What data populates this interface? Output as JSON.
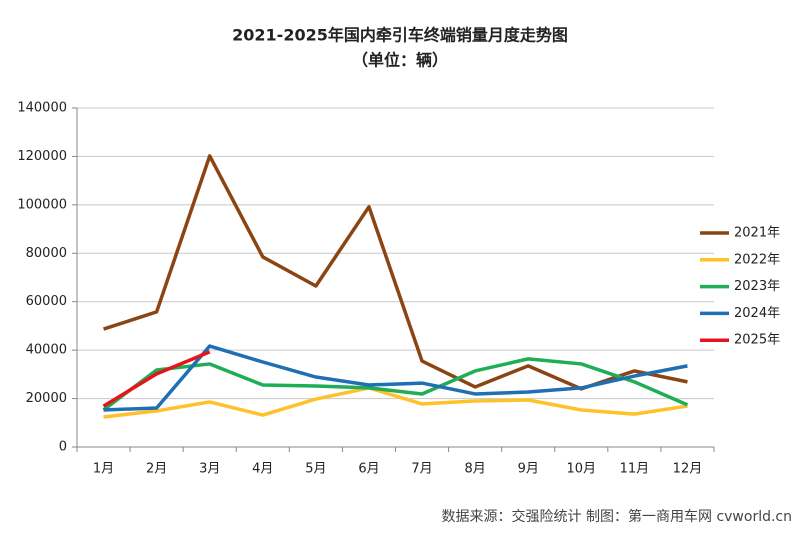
{
  "chart_data": {
    "type": "line",
    "title": "2021-2025年国内牵引车终端销量月度走势图",
    "subtitle": "（单位：辆）",
    "source": "数据来源：交强险统计   制图：第一商用车网 cvworld.cn",
    "categories": [
      "1月",
      "2月",
      "3月",
      "4月",
      "5月",
      "6月",
      "7月",
      "8月",
      "9月",
      "10月",
      "11月",
      "12月"
    ],
    "series": [
      {
        "name": "2021年",
        "color": "#8b4513",
        "values": [
          48700,
          55800,
          120200,
          78500,
          66500,
          99200,
          35500,
          24800,
          33500,
          24000,
          31400,
          26900
        ]
      },
      {
        "name": "2022年",
        "color": "#ffc12a",
        "values": [
          12400,
          14900,
          18600,
          13200,
          19800,
          24400,
          17800,
          19000,
          19400,
          15300,
          13600,
          16900
        ]
      },
      {
        "name": "2023年",
        "color": "#1fad55",
        "values": [
          15300,
          31800,
          34300,
          25600,
          25200,
          24400,
          21900,
          31400,
          36400,
          34300,
          26900,
          17400
        ]
      },
      {
        "name": "2024年",
        "color": "#1f6fb5",
        "values": [
          15300,
          16100,
          41700,
          35100,
          28900,
          25600,
          26400,
          21900,
          22700,
          24400,
          29300,
          33500
        ]
      },
      {
        "name": "2025年",
        "color": "#e8141c",
        "values": [
          16900,
          30200,
          39300,
          null,
          null,
          null,
          null,
          null,
          null,
          null,
          null,
          null
        ]
      }
    ],
    "ylim": [
      0,
      140000
    ],
    "yticks": [
      0,
      20000,
      40000,
      60000,
      80000,
      100000,
      120000,
      140000
    ],
    "grid": true,
    "legend": "right"
  }
}
